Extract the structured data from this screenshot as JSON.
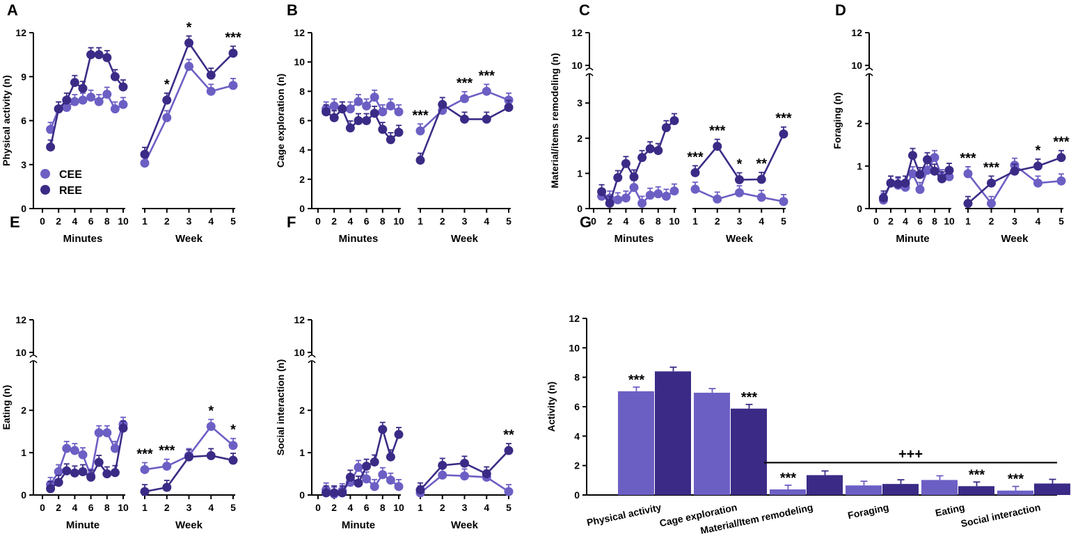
{
  "colors": {
    "CEE": "#6c5fc4",
    "REE": "#3b2b86",
    "axis": "#000000"
  },
  "legend": [
    "CEE",
    "REE"
  ],
  "chart_data": [
    {
      "id": "A",
      "letter": "A",
      "type": "line",
      "ylabel": "Physical activity (n)",
      "ylim": [
        0,
        12
      ],
      "yticks": [
        "0",
        "3",
        "6",
        "9",
        "12"
      ],
      "broken": false,
      "left": {
        "xlabel": "Minutes",
        "x": [
          1,
          2,
          3,
          4,
          5,
          6,
          7,
          8,
          9,
          10
        ],
        "xticks": [
          "0",
          "2",
          "4",
          "6",
          "8",
          "10"
        ],
        "CEE": [
          5.4,
          6.8,
          6.9,
          7.3,
          7.4,
          7.6,
          7.3,
          7.8,
          6.8,
          7.1
        ],
        "REE": [
          4.2,
          6.8,
          7.4,
          8.6,
          8.2,
          10.5,
          10.5,
          10.3,
          9.0,
          8.3
        ],
        "sig": []
      },
      "right": {
        "xlabel": "Week",
        "x": [
          1,
          2,
          3,
          4,
          5
        ],
        "xticks": [
          "1",
          "2",
          "3",
          "4",
          "5"
        ],
        "CEE": [
          3.1,
          6.2,
          9.7,
          8.0,
          8.4
        ],
        "REE": [
          3.7,
          7.4,
          11.3,
          9.1,
          10.6
        ],
        "sig": [
          "",
          "*",
          "*",
          "",
          "***"
        ]
      }
    },
    {
      "id": "B",
      "letter": "B",
      "type": "line",
      "ylabel": "Cage exploration (n)",
      "ylim": [
        0,
        12
      ],
      "yticks": [
        "0",
        "2",
        "4",
        "6",
        "8",
        "10",
        "12"
      ],
      "broken": false,
      "left": {
        "xlabel": "Minutes",
        "x": [
          1,
          2,
          3,
          4,
          5,
          6,
          7,
          8,
          9,
          10
        ],
        "xticks": [
          "0",
          "2",
          "4",
          "6",
          "8",
          "10"
        ],
        "CEE": [
          6.8,
          7.0,
          6.8,
          6.8,
          7.3,
          7.0,
          7.6,
          6.6,
          7.0,
          6.6
        ],
        "REE": [
          6.6,
          6.2,
          6.8,
          5.5,
          6.0,
          6.0,
          6.5,
          5.4,
          4.7,
          5.2
        ],
        "sig": []
      },
      "right": {
        "xlabel": "Week",
        "x": [
          1,
          2,
          3,
          4,
          5
        ],
        "xticks": [
          "1",
          "2",
          "3",
          "4",
          "5"
        ],
        "CEE": [
          5.3,
          6.7,
          7.5,
          8.0,
          7.4
        ],
        "REE": [
          3.3,
          7.1,
          6.1,
          6.1,
          6.9
        ],
        "sig": [
          "***",
          "",
          "***",
          "***",
          ""
        ]
      }
    },
    {
      "id": "C",
      "letter": "C",
      "type": "line",
      "ylabel": "Material/items remodeling (n)",
      "ylim": [
        0,
        12
      ],
      "yticks": [
        "0",
        "1",
        "2",
        "3",
        "10",
        "12"
      ],
      "broken": true,
      "left": {
        "xlabel": "Minutes",
        "x": [
          1,
          2,
          3,
          4,
          5,
          6,
          7,
          8,
          9,
          10
        ],
        "xticks": [
          "0",
          "2",
          "4",
          "6",
          "8",
          "10"
        ],
        "CEE": [
          0.35,
          0.3,
          0.25,
          0.3,
          0.6,
          0.15,
          0.38,
          0.42,
          0.35,
          0.5
        ],
        "REE": [
          0.48,
          0.15,
          0.88,
          1.28,
          0.9,
          1.45,
          1.7,
          1.65,
          2.3,
          2.5
        ],
        "sig": []
      },
      "right": {
        "xlabel": "Week",
        "x": [
          1,
          2,
          3,
          4,
          5
        ],
        "xticks": [
          "1",
          "2",
          "3",
          "4",
          "5"
        ],
        "CEE": [
          0.55,
          0.27,
          0.45,
          0.32,
          0.2
        ],
        "REE": [
          1.02,
          1.77,
          0.82,
          0.83,
          2.12
        ],
        "sig": [
          "***",
          "***",
          "*",
          "**",
          "***"
        ]
      }
    },
    {
      "id": "D",
      "letter": "D",
      "type": "line",
      "ylabel": "Foraging (n)",
      "ylim": [
        0,
        12
      ],
      "yticks": [
        "0",
        "1",
        "2",
        "10",
        "12"
      ],
      "broken": true,
      "left": {
        "xlabel": "Minute",
        "x": [
          1,
          2,
          3,
          4,
          5,
          6,
          7,
          8,
          9,
          10
        ],
        "xticks": [
          "0",
          "2",
          "4",
          "6",
          "8",
          "10"
        ],
        "CEE": [
          0.2,
          0.6,
          0.55,
          0.5,
          0.82,
          0.45,
          0.9,
          1.2,
          0.75,
          0.75
        ],
        "REE": [
          0.25,
          0.6,
          0.58,
          0.6,
          1.25,
          0.8,
          1.15,
          0.88,
          0.7,
          0.9
        ],
        "sig": []
      },
      "right": {
        "xlabel": "Week",
        "x": [
          1,
          2,
          3,
          4,
          5
        ],
        "xticks": [
          "1",
          "2",
          "3",
          "4",
          "5"
        ],
        "CEE": [
          0.82,
          0.12,
          1.02,
          0.6,
          0.65
        ],
        "REE": [
          0.12,
          0.6,
          0.88,
          1.0,
          1.2
        ],
        "sig": [
          "***",
          "***",
          "",
          "*",
          "***"
        ]
      }
    },
    {
      "id": "E",
      "letter": "E",
      "type": "line",
      "ylabel": "Eating (n)",
      "ylim": [
        0,
        12
      ],
      "yticks": [
        "0",
        "1",
        "2",
        "10",
        "12"
      ],
      "broken": true,
      "left": {
        "xlabel": "Minute",
        "x": [
          1,
          2,
          3,
          4,
          5,
          6,
          7,
          8,
          9,
          10
        ],
        "xticks": [
          "0",
          "2",
          "4",
          "6",
          "8",
          "10"
        ],
        "CEE": [
          0.25,
          0.55,
          1.1,
          1.05,
          0.95,
          0.45,
          1.47,
          1.47,
          1.1,
          1.67
        ],
        "REE": [
          0.15,
          0.3,
          0.57,
          0.52,
          0.55,
          0.42,
          0.77,
          0.5,
          0.53,
          1.58
        ],
        "sig": []
      },
      "right": {
        "xlabel": "Week",
        "x": [
          1,
          2,
          3,
          4,
          5
        ],
        "xticks": [
          "1",
          "2",
          "3",
          "4",
          "5"
        ],
        "CEE": [
          0.6,
          0.68,
          0.93,
          1.62,
          1.17
        ],
        "REE": [
          0.08,
          0.18,
          0.9,
          0.93,
          0.82
        ],
        "sig": [
          "***",
          "***",
          "",
          "*",
          "*"
        ]
      }
    },
    {
      "id": "F",
      "letter": "F",
      "type": "line",
      "ylabel": "Social interaction (n)",
      "ylim": [
        0,
        12
      ],
      "yticks": [
        "0",
        "1",
        "2",
        "10",
        "12"
      ],
      "broken": true,
      "left": {
        "xlabel": "Minute",
        "x": [
          1,
          2,
          3,
          4,
          5,
          6,
          7,
          8,
          9,
          10
        ],
        "xticks": [
          "0",
          "2",
          "4",
          "6",
          "8",
          "10"
        ],
        "CEE": [
          0.12,
          0.02,
          0.1,
          0.3,
          0.65,
          0.38,
          0.2,
          0.48,
          0.35,
          0.2
        ],
        "REE": [
          0.05,
          0.05,
          0.05,
          0.42,
          0.28,
          0.68,
          0.78,
          1.55,
          0.9,
          1.43
        ],
        "sig": []
      },
      "right": {
        "xlabel": "Week",
        "x": [
          1,
          2,
          3,
          4,
          5
        ],
        "xticks": [
          "1",
          "2",
          "3",
          "4",
          "5"
        ],
        "CEE": [
          0.05,
          0.47,
          0.45,
          0.42,
          0.08
        ],
        "REE": [
          0.12,
          0.7,
          0.75,
          0.5,
          1.05
        ],
        "sig": [
          "",
          "",
          "",
          "",
          "**"
        ]
      }
    },
    {
      "id": "G",
      "letter": "G",
      "type": "bar",
      "ylabel": "Activity (n)",
      "ylim": [
        0,
        12
      ],
      "yticks": [
        "0",
        "2",
        "4",
        "6",
        "8",
        "10",
        "12"
      ],
      "categories": [
        "Physical activity",
        "Cage exploration",
        "Material/Item remodeling",
        "Foraging",
        "Eating",
        "Social interaction"
      ],
      "series": [
        {
          "name": "CEE",
          "values": [
            7.05,
            6.95,
            0.38,
            0.65,
            1.02,
            0.3
          ]
        },
        {
          "name": "REE",
          "values": [
            8.4,
            5.87,
            1.35,
            0.75,
            0.6,
            0.78
          ]
        }
      ],
      "sig": [
        "***",
        "***",
        "***",
        "",
        "***",
        "***"
      ],
      "sig_series": [
        0,
        1,
        0,
        -1,
        1,
        0
      ],
      "group_sig": "+++"
    }
  ]
}
